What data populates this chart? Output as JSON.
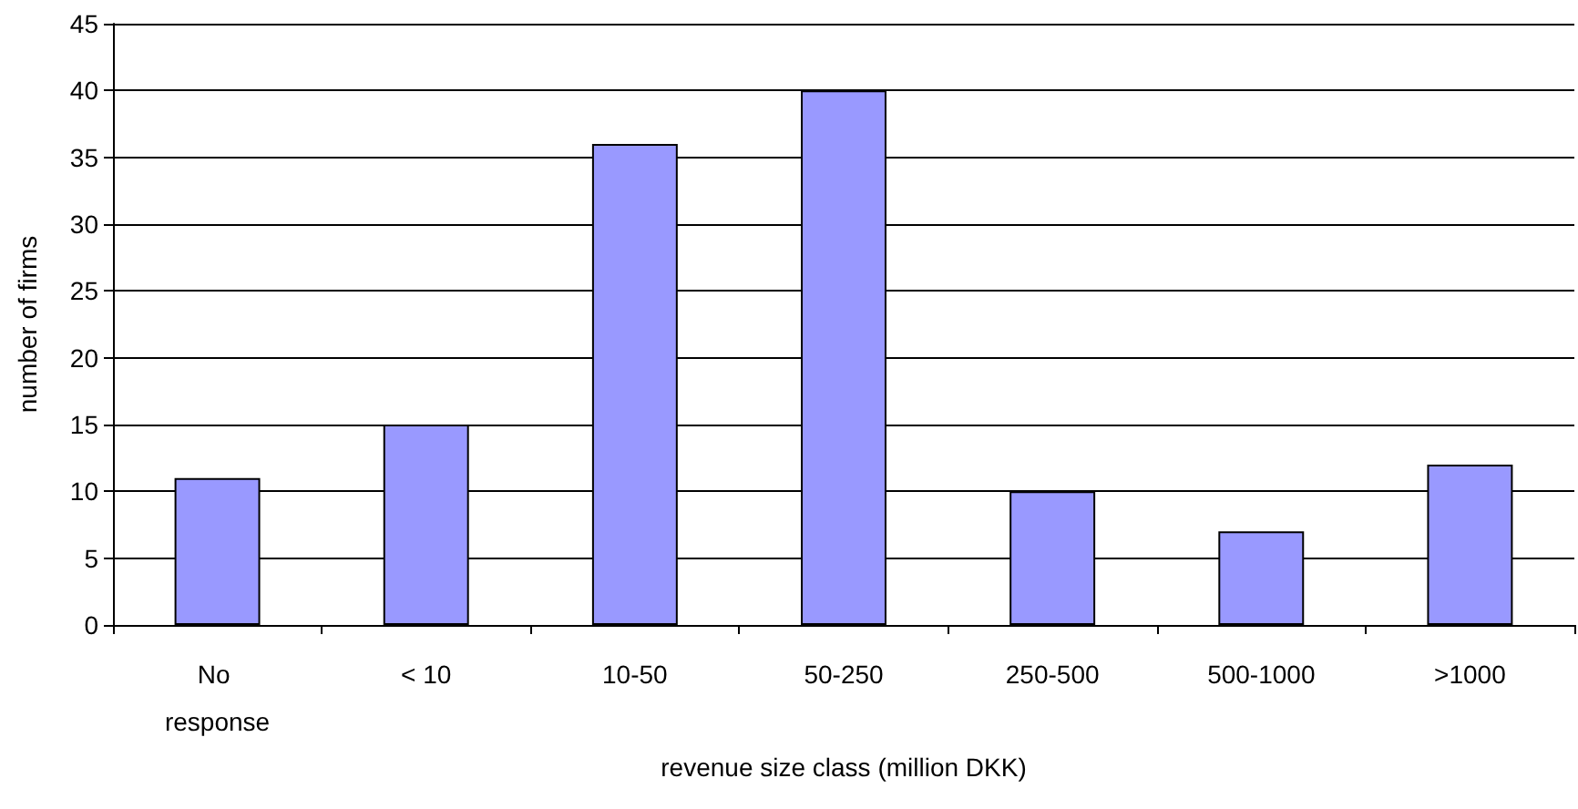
{
  "chart_data": {
    "type": "bar",
    "xlabel": "revenue size class (million DKK)",
    "ylabel": "number of firms",
    "categories": [
      "No response",
      "< 10",
      "10-50",
      "50-250",
      "250-500",
      "500-1000",
      ">1000"
    ],
    "values": [
      11,
      15,
      36,
      40,
      10,
      7,
      12
    ],
    "color": "#9999ff",
    "ylim": [
      0,
      45
    ],
    "yticks": [
      0,
      5,
      10,
      15,
      20,
      25,
      30,
      35,
      40,
      45
    ],
    "grid": "y"
  }
}
